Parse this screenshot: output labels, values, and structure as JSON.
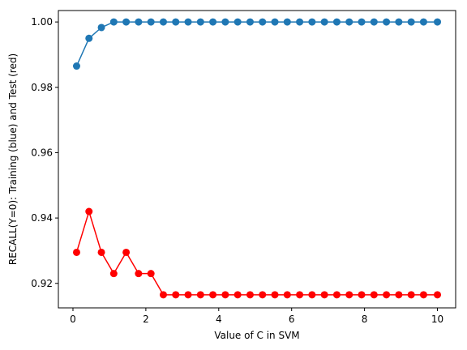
{
  "chart_data": {
    "type": "line",
    "title": "",
    "xlabel": "Value of C in SVM",
    "ylabel": "RECALL(Y=0): Training (blue) and Test (red)",
    "xlim": [
      -0.4,
      10.5
    ],
    "ylim": [
      0.9125,
      1.0035
    ],
    "xticks": [
      0,
      2,
      4,
      6,
      8,
      10
    ],
    "yticks": [
      0.92,
      0.94,
      0.96,
      0.98,
      1.0
    ],
    "ytick_labels": [
      "0.92",
      "0.94",
      "0.96",
      "0.98",
      "1.00"
    ],
    "grid": false,
    "x": [
      0.1,
      0.44,
      0.78,
      1.12,
      1.46,
      1.8,
      2.14,
      2.48,
      2.82,
      3.16,
      3.5,
      3.84,
      4.18,
      4.52,
      4.86,
      5.2,
      5.54,
      5.88,
      6.22,
      6.56,
      6.9,
      7.24,
      7.58,
      7.92,
      8.26,
      8.6,
      8.94,
      9.28,
      9.62,
      10.0
    ],
    "series": [
      {
        "color": "#1f77b4",
        "values": [
          0.9865,
          0.995,
          0.9983,
          1.0,
          1.0,
          1.0,
          1.0,
          1.0,
          1.0,
          1.0,
          1.0,
          1.0,
          1.0,
          1.0,
          1.0,
          1.0,
          1.0,
          1.0,
          1.0,
          1.0,
          1.0,
          1.0,
          1.0,
          1.0,
          1.0,
          1.0,
          1.0,
          1.0,
          1.0,
          1.0
        ]
      },
      {
        "color": "#ff0000",
        "values": [
          0.9295,
          0.942,
          0.9295,
          0.923,
          0.9295,
          0.923,
          0.923,
          0.9165,
          0.9165,
          0.9165,
          0.9165,
          0.9165,
          0.9165,
          0.9165,
          0.9165,
          0.9165,
          0.9165,
          0.9165,
          0.9165,
          0.9165,
          0.9165,
          0.9165,
          0.9165,
          0.9165,
          0.9165,
          0.9165,
          0.9165,
          0.9165,
          0.9165,
          0.9165
        ]
      }
    ]
  }
}
